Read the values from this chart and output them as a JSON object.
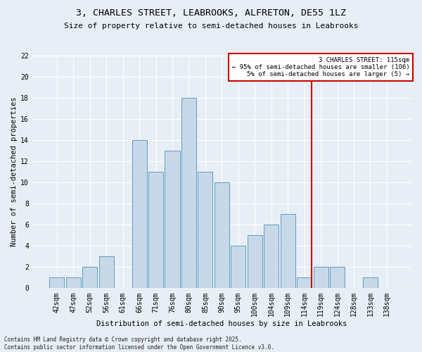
{
  "title": "3, CHARLES STREET, LEABROOKS, ALFRETON, DE55 1LZ",
  "subtitle": "Size of property relative to semi-detached houses in Leabrooks",
  "xlabel": "Distribution of semi-detached houses by size in Leabrooks",
  "ylabel": "Number of semi-detached properties",
  "footnote": "Contains HM Land Registry data © Crown copyright and database right 2025.\nContains public sector information licensed under the Open Government Licence v3.0.",
  "bar_labels": [
    "42sqm",
    "47sqm",
    "52sqm",
    "56sqm",
    "61sqm",
    "66sqm",
    "71sqm",
    "76sqm",
    "80sqm",
    "85sqm",
    "90sqm",
    "95sqm",
    "100sqm",
    "104sqm",
    "109sqm",
    "114sqm",
    "119sqm",
    "124sqm",
    "128sqm",
    "133sqm",
    "138sqm"
  ],
  "bar_values": [
    1,
    1,
    2,
    3,
    0,
    14,
    11,
    13,
    18,
    11,
    10,
    4,
    5,
    6,
    7,
    1,
    2,
    2,
    0,
    1,
    0
  ],
  "bar_color": "#c8d8e8",
  "bar_edge_color": "#5a9fc0",
  "annotation_line_label": "114sqm",
  "annotation_box_text": "3 CHARLES STREET: 115sqm\n← 95% of semi-detached houses are smaller (106)\n5% of semi-detached houses are larger (5) →",
  "annotation_box_color": "#cc0000",
  "annotation_line_color": "#cc0000",
  "ylim": [
    0,
    22
  ],
  "yticks": [
    0,
    2,
    4,
    6,
    8,
    10,
    12,
    14,
    16,
    18,
    20,
    22
  ],
  "bg_color": "#e8eef5",
  "plot_bg_color": "#e8eef5",
  "grid_color": "#ffffff",
  "title_fontsize": 9.5,
  "subtitle_fontsize": 8.0,
  "ylabel_fontsize": 7.5,
  "xlabel_fontsize": 7.5,
  "tick_fontsize": 7.0,
  "footnote_fontsize": 5.5
}
